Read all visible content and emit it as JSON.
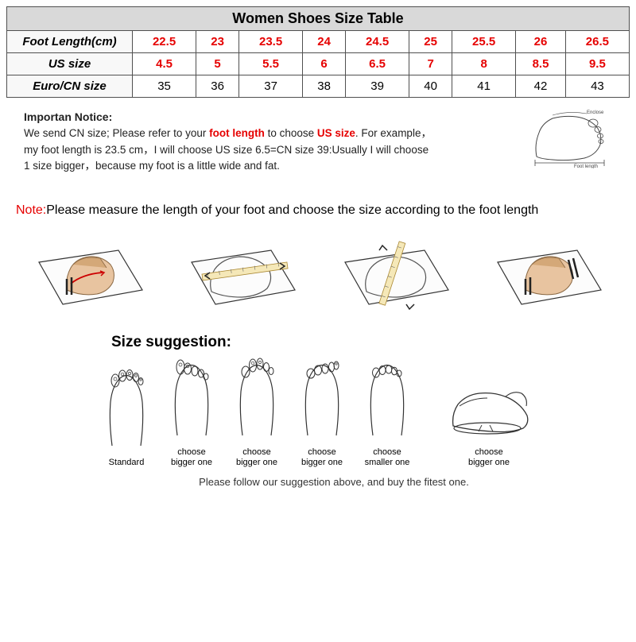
{
  "table": {
    "title": "Women Shoes Size Table",
    "rows": [
      {
        "header": "Foot Length(cm)",
        "values": [
          "22.5",
          "23",
          "23.5",
          "24",
          "24.5",
          "25",
          "25.5",
          "26",
          "26.5"
        ],
        "color": "red"
      },
      {
        "header": "US size",
        "values": [
          "4.5",
          "5",
          "5.5",
          "6",
          "6.5",
          "7",
          "8",
          "8.5",
          "9.5"
        ],
        "color": "red"
      },
      {
        "header": "Euro/CN size",
        "values": [
          "35",
          "36",
          "37",
          "38",
          "39",
          "40",
          "41",
          "42",
          "43"
        ],
        "color": "black"
      }
    ]
  },
  "notice": {
    "title": "Importan Notice:",
    "line1a": "We send CN size; Please refer to your ",
    "line1b": "foot length",
    "line1c": " to choose ",
    "line1d": "US size",
    "line1e": ". For example，",
    "line2": "my foot length is 23.5 cm，I will choose US size 6.5=CN size 39:Usually I will choose",
    "line3": "1 size bigger，because my foot is a little wide and fat.",
    "diag_enclose": "Enclose",
    "diag_footlen": "Foot length"
  },
  "note": {
    "prefix": "Note:",
    "text": "Please measure the length of your foot and choose the size according to the foot length"
  },
  "suggestion": {
    "title": "Size suggestion:",
    "labels": [
      "Standard",
      "choose\nbigger one",
      "choose\nbigger one",
      "choose\nbigger one",
      "choose\nsmaller one",
      "choose\nbigger one"
    ],
    "footer": "Please follow our suggestion above, and buy the fitest one."
  },
  "colors": {
    "red": "#e60000",
    "header_bg": "#d9d9d9",
    "border": "#505050",
    "foot_fill": "#e8c4a0",
    "foot_stroke": "#8a6843"
  }
}
